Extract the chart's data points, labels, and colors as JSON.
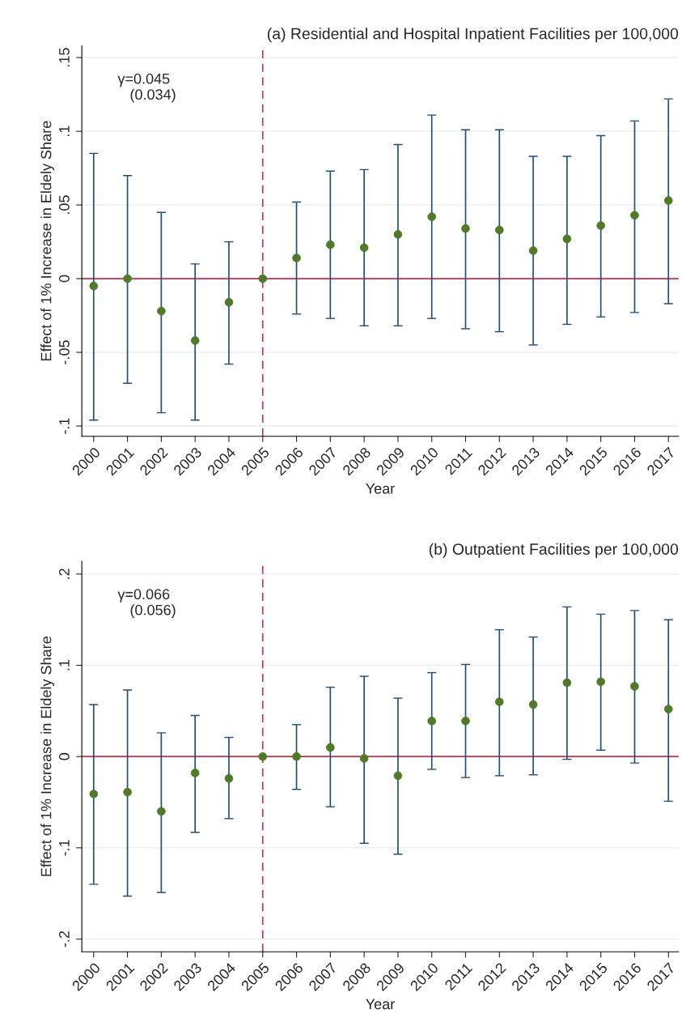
{
  "chart_data": [
    {
      "type": "scatter",
      "title": "(a) Residential and Hospital Inpatient Facilities per 100,000",
      "xlabel": "Year",
      "ylabel": "Effect of 1% Increase in Eldely Share",
      "categories": [
        "2000",
        "2001",
        "2002",
        "2003",
        "2004",
        "2005",
        "2006",
        "2007",
        "2008",
        "2009",
        "2010",
        "2011",
        "2012",
        "2013",
        "2014",
        "2015",
        "2016",
        "2017"
      ],
      "series": [
        {
          "color": "#4f7a28",
          "values": [
            -0.005,
            0.0,
            -0.022,
            -0.042,
            -0.016,
            0.0,
            0.014,
            0.023,
            0.021,
            0.03,
            0.042,
            0.034,
            0.033,
            0.019,
            0.027,
            0.036,
            0.043,
            0.053
          ],
          "errors": [
            [
              -0.096,
              0.085
            ],
            [
              -0.071,
              0.07
            ],
            [
              -0.091,
              0.045
            ],
            [
              -0.096,
              0.01
            ],
            [
              -0.058,
              0.025
            ],
            null,
            [
              -0.024,
              0.052
            ],
            [
              -0.027,
              0.073
            ],
            [
              -0.032,
              0.074
            ],
            [
              -0.032,
              0.091
            ],
            [
              -0.027,
              0.111
            ],
            [
              -0.034,
              0.101
            ],
            [
              -0.036,
              0.101
            ],
            [
              -0.045,
              0.083
            ],
            [
              -0.031,
              0.083
            ],
            [
              -0.026,
              0.097
            ],
            [
              -0.023,
              0.107
            ],
            [
              -0.017,
              0.122
            ]
          ]
        }
      ],
      "ylim": [
        -0.107,
        0.158
      ],
      "yticks": [
        {
          "value": -0.1,
          "label": "-.1"
        },
        {
          "value": -0.05,
          "label": "-.05"
        },
        0,
        {
          "value": 0.05,
          "label": ".05"
        },
        {
          "value": 0.1,
          "label": ".1"
        },
        {
          "value": 0.15,
          "label": ".15"
        }
      ],
      "ref_lines": [
        {
          "axis": "y",
          "value": 0,
          "color": "#c0334a",
          "line_style": "solid"
        },
        {
          "axis": "x",
          "value": "2005",
          "color": "#c0334a",
          "line_style": "dashed"
        }
      ],
      "annotations": [
        "γ=0.045\n   (0.034)"
      ],
      "grid": "y",
      "marker": "circle"
    },
    {
      "type": "scatter",
      "title": "(b) Outpatient Facilities per 100,000",
      "xlabel": "Year",
      "ylabel": "Effect of 1% Increase in Eldely Share",
      "categories": [
        "2000",
        "2001",
        "2002",
        "2003",
        "2004",
        "2005",
        "2006",
        "2007",
        "2008",
        "2009",
        "2010",
        "2011",
        "2012",
        "2013",
        "2014",
        "2015",
        "2016",
        "2017"
      ],
      "series": [
        {
          "color": "#4f7a28",
          "values": [
            -0.041,
            -0.039,
            -0.06,
            -0.018,
            -0.024,
            0.0,
            0.0,
            0.01,
            -0.002,
            -0.021,
            0.039,
            0.039,
            0.06,
            0.057,
            0.081,
            0.082,
            0.077,
            0.052
          ],
          "errors": [
            [
              -0.14,
              0.057
            ],
            [
              -0.153,
              0.073
            ],
            [
              -0.149,
              0.026
            ],
            [
              -0.083,
              0.045
            ],
            [
              -0.068,
              0.021
            ],
            null,
            [
              -0.036,
              0.035
            ],
            [
              -0.055,
              0.076
            ],
            [
              -0.095,
              0.088
            ],
            [
              -0.107,
              0.064
            ],
            [
              -0.014,
              0.092
            ],
            [
              -0.023,
              0.101
            ],
            [
              -0.021,
              0.139
            ],
            [
              -0.02,
              0.131
            ],
            [
              -0.003,
              0.164
            ],
            [
              0.007,
              0.156
            ],
            [
              -0.007,
              0.16
            ],
            [
              -0.049,
              0.15
            ]
          ]
        }
      ],
      "ylim": [
        -0.214,
        0.214
      ],
      "yticks": [
        {
          "value": -0.2,
          "label": "-.2"
        },
        {
          "value": -0.1,
          "label": "-.1"
        },
        0,
        {
          "value": 0.1,
          "label": ".1"
        },
        {
          "value": 0.2,
          "label": ".2"
        }
      ],
      "ref_lines": [
        {
          "axis": "y",
          "value": 0,
          "color": "#c0334a",
          "line_style": "solid"
        },
        {
          "axis": "x",
          "value": "2005",
          "color": "#c0334a",
          "line_style": "dashed"
        }
      ],
      "annotations": [
        "γ=0.066\n   (0.056)"
      ],
      "grid": "y",
      "marker": "circle"
    }
  ]
}
